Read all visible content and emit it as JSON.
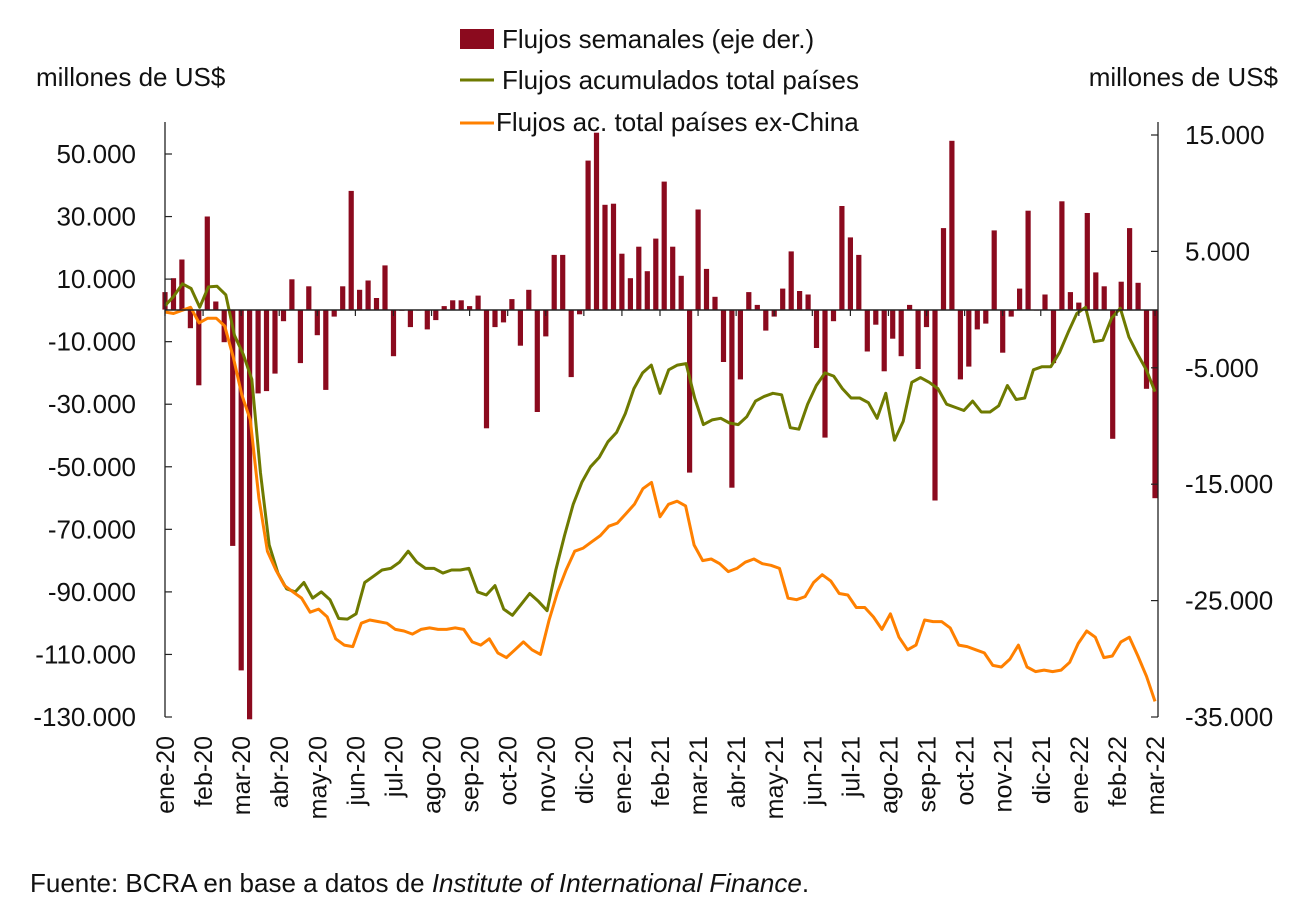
{
  "chart_data": {
    "type": "bar+line",
    "title": "",
    "ylabel_left": "millones de US$",
    "ylabel_right": "millones de US$",
    "y_left": {
      "range": [
        -130000,
        60000
      ],
      "ticks": [
        50000,
        30000,
        10000,
        -10000,
        -30000,
        -50000,
        -70000,
        -90000,
        -110000,
        -130000
      ],
      "tick_labels": [
        "50.000",
        "30.000",
        "10.000",
        "-10.000",
        "-30.000",
        "-50.000",
        "-70.000",
        "-90.000",
        "-110.000",
        "-130.000"
      ]
    },
    "y_right": {
      "range": [
        -35000,
        16500
      ],
      "ticks": [
        15000,
        5000,
        -5000,
        -15000,
        -25000,
        -35000
      ],
      "tick_labels": [
        "15.000",
        "5.000",
        "-5.000",
        "-15.000",
        "-25.000",
        "-35.000"
      ]
    },
    "x_tick_labels": [
      "ene-20",
      "feb-20",
      "mar-20",
      "abr-20",
      "may-20",
      "jun-20",
      "jul-20",
      "ago-20",
      "sep-20",
      "oct-20",
      "nov-20",
      "dic-20",
      "ene-21",
      "feb-21",
      "mar-21",
      "abr-21",
      "may-21",
      "jun-21",
      "jul-21",
      "ago-21",
      "sep-21",
      "oct-21",
      "nov-21",
      "dic-21",
      "ene-22",
      "feb-22",
      "mar-22"
    ],
    "legend": [
      {
        "label": "Flujos semanales (eje der.)",
        "type": "bar",
        "color": "#8b0a1e"
      },
      {
        "label": "Flujos acumulados total países",
        "type": "line",
        "color": "#6e7a00"
      },
      {
        "label": "Flujos ac. total países ex-China",
        "type": "line",
        "color": "#ff8000"
      }
    ],
    "legend_position": "top-center",
    "series": [
      {
        "name": "Flujos semanales (eje der.)",
        "axis": "right",
        "type": "bar",
        "values": [
          1500,
          2700,
          4300,
          -1600,
          -6500,
          8000,
          700,
          -2800,
          -20300,
          -31000,
          -35200,
          -7200,
          -7000,
          -5500,
          -1000,
          2600,
          -4600,
          2000,
          -2200,
          -6900,
          -600,
          2000,
          10200,
          1700,
          2500,
          1000,
          3800,
          -4000,
          -100,
          -1500,
          0,
          -1700,
          -900,
          300,
          800,
          800,
          300,
          1200,
          -10200,
          -1500,
          -1100,
          900,
          -3100,
          1700,
          -8800,
          -2300,
          4700,
          4700,
          -5800,
          -400,
          12800,
          15200,
          9000,
          9100,
          4800,
          2700,
          5400,
          3300,
          6100,
          11000,
          5400,
          2900,
          -14000,
          8600,
          3500,
          1100,
          -4500,
          -15300,
          -6000,
          1500,
          400,
          -1800,
          -600,
          1800,
          5000,
          1600,
          1300,
          -3300,
          -11000,
          -1000,
          8900,
          6200,
          4700,
          -3600,
          -1300,
          -5300,
          -2500,
          -4000,
          400,
          -5100,
          -1500,
          -16400,
          7000,
          14500,
          -6000,
          -4900,
          -1700,
          -1200,
          6800,
          -3700,
          -600,
          1800,
          8500,
          0,
          1300,
          -4600,
          9300,
          1500,
          600,
          8300,
          3200,
          2000,
          -11100,
          2400,
          7000,
          2300,
          -6800,
          -16200
        ]
      },
      {
        "name": "Flujos acumulados total países",
        "axis": "left",
        "type": "line",
        "values": [
          1500,
          4500,
          8500,
          7000,
          1000,
          7500,
          7700,
          5000,
          -8000,
          -14000,
          -22000,
          -52000,
          -75000,
          -84000,
          -89000,
          -90000,
          -87000,
          -92000,
          -90000,
          -92500,
          -98500,
          -98700,
          -97000,
          -87000,
          -85000,
          -83000,
          -82500,
          -80500,
          -77000,
          -80500,
          -82500,
          -82500,
          -84000,
          -83000,
          -83000,
          -82500,
          -90000,
          -91000,
          -88000,
          -95500,
          -97500,
          -94000,
          -90500,
          -93000,
          -96000,
          -83000,
          -72000,
          -62000,
          -55000,
          -50000,
          -47000,
          -42000,
          -39000,
          -33000,
          -25000,
          -20000,
          -17500,
          -26500,
          -19000,
          -17500,
          -17000,
          -28000,
          -36500,
          -35000,
          -34500,
          -36000,
          -36500,
          -34000,
          -29000,
          -27500,
          -26500,
          -27000,
          -37500,
          -38000,
          -30000,
          -24000,
          -20000,
          -21000,
          -25000,
          -28000,
          -28000,
          -29500,
          -34500,
          -26500,
          -41500,
          -35500,
          -23000,
          -21500,
          -23000,
          -25000,
          -30000,
          -31000,
          -32000,
          -29000,
          -32500,
          -32500,
          -30500,
          -24000,
          -28500,
          -28000,
          -19000,
          -18000,
          -18000,
          -13500,
          -7000,
          -1000,
          1000,
          -10000,
          -9500,
          -2500,
          700,
          -8500,
          -14000,
          -19000,
          -26000
        ]
      },
      {
        "name": "Flujos ac. total países ex-China",
        "axis": "left",
        "type": "line",
        "values": [
          -500,
          -1000,
          0,
          1000,
          -4000,
          -2500,
          -2500,
          -5000,
          -15000,
          -27000,
          -35000,
          -60000,
          -77000,
          -83000,
          -88000,
          -90000,
          -92000,
          -96500,
          -95500,
          -98000,
          -105000,
          -107000,
          -107500,
          -100000,
          -99000,
          -99500,
          -100000,
          -102000,
          -102500,
          -103500,
          -102000,
          -101500,
          -102000,
          -102000,
          -101500,
          -102000,
          -106000,
          -107000,
          -105000,
          -109500,
          -111000,
          -108500,
          -106000,
          -108500,
          -110000,
          -99000,
          -90000,
          -83000,
          -77000,
          -76000,
          -74000,
          -72000,
          -69000,
          -68000,
          -65000,
          -62000,
          -57000,
          -55000,
          -66000,
          -62000,
          -61000,
          -62500,
          -75000,
          -80000,
          -79500,
          -81000,
          -83500,
          -82500,
          -80500,
          -79500,
          -81000,
          -81500,
          -82500,
          -92000,
          -92500,
          -91500,
          -87000,
          -84500,
          -86500,
          -90500,
          -91000,
          -95000,
          -95000,
          -98000,
          -102000,
          -97000,
          -104500,
          -108500,
          -107000,
          -99000,
          -99500,
          -99500,
          -101500,
          -107000,
          -107500,
          -108500,
          -109500,
          -113500,
          -114000,
          -111500,
          -107000,
          -114000,
          -115500,
          -115000,
          -115500,
          -115000,
          -112500,
          -106500,
          -102500,
          -104500,
          -111000,
          -110500,
          -106000,
          -104500,
          -110500,
          -117000,
          -125000
        ]
      }
    ]
  },
  "footer": {
    "prefix": "Fuente: BCRA en base a datos de ",
    "italic": "Institute of International Finance",
    "suffix": "."
  }
}
